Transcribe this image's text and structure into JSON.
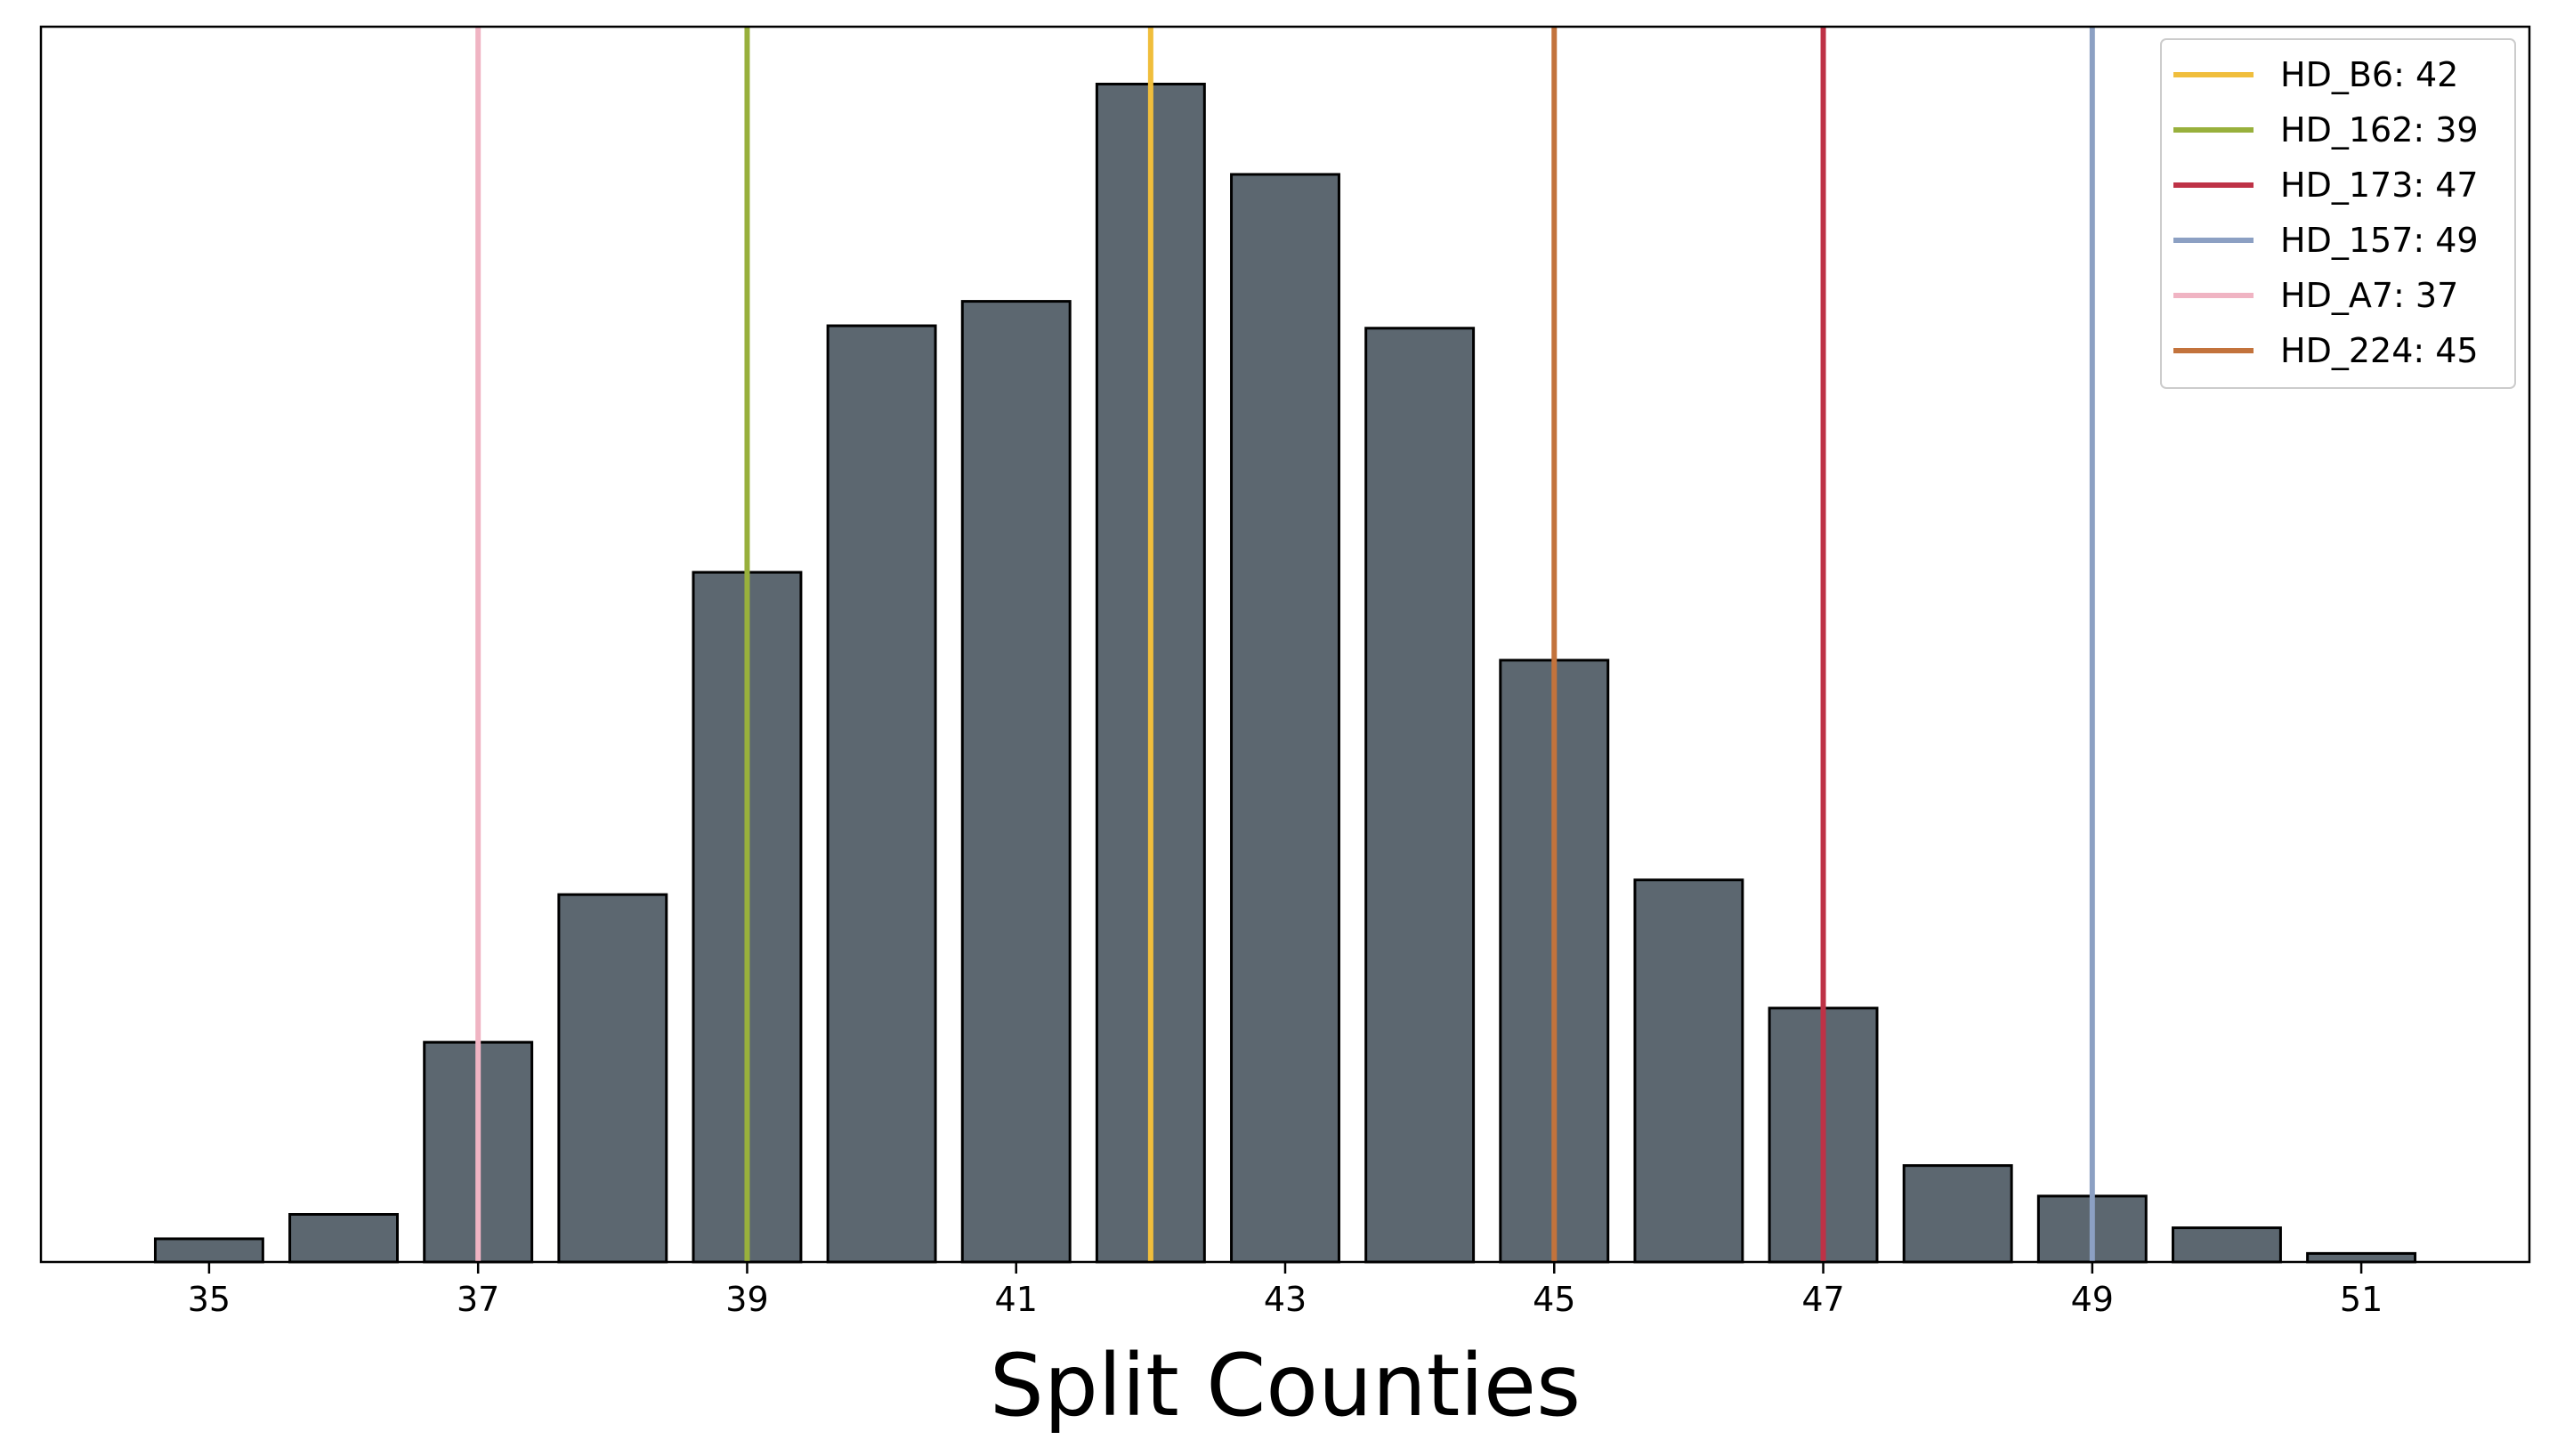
{
  "chart_data": {
    "type": "bar",
    "title": "",
    "xlabel": "Split Counties",
    "ylabel": "",
    "x": [
      35,
      36,
      37,
      38,
      39,
      40,
      41,
      42,
      43,
      44,
      45,
      46,
      47,
      48,
      49,
      50,
      51
    ],
    "values": [
      19,
      39,
      180,
      301,
      565,
      767,
      787,
      965,
      891,
      765,
      493,
      313,
      208,
      79,
      54,
      28,
      7
    ],
    "xlim": [
      33.75,
      52.25
    ],
    "ylim": [
      0,
      1012
    ],
    "xticks": [
      "35",
      "37",
      "39",
      "41",
      "43",
      "45",
      "47",
      "49",
      "51"
    ],
    "grid": false,
    "bar_color": "#5c6770",
    "bar_edge_color": "#000000",
    "legend_position": "top-right",
    "reference_lines": [
      {
        "label": "HD_B6: 42",
        "x": 42,
        "color": "#f0be3c"
      },
      {
        "label": "HD_162: 39",
        "x": 39,
        "color": "#98b03c"
      },
      {
        "label": "HD_173: 47",
        "x": 47,
        "color": "#be3246"
      },
      {
        "label": "HD_157: 49",
        "x": 49,
        "color": "#8ca0c3"
      },
      {
        "label": "HD_A7: 37",
        "x": 37,
        "color": "#f0b4c3"
      },
      {
        "label": "HD_224: 45",
        "x": 45,
        "color": "#c3733c"
      }
    ]
  }
}
